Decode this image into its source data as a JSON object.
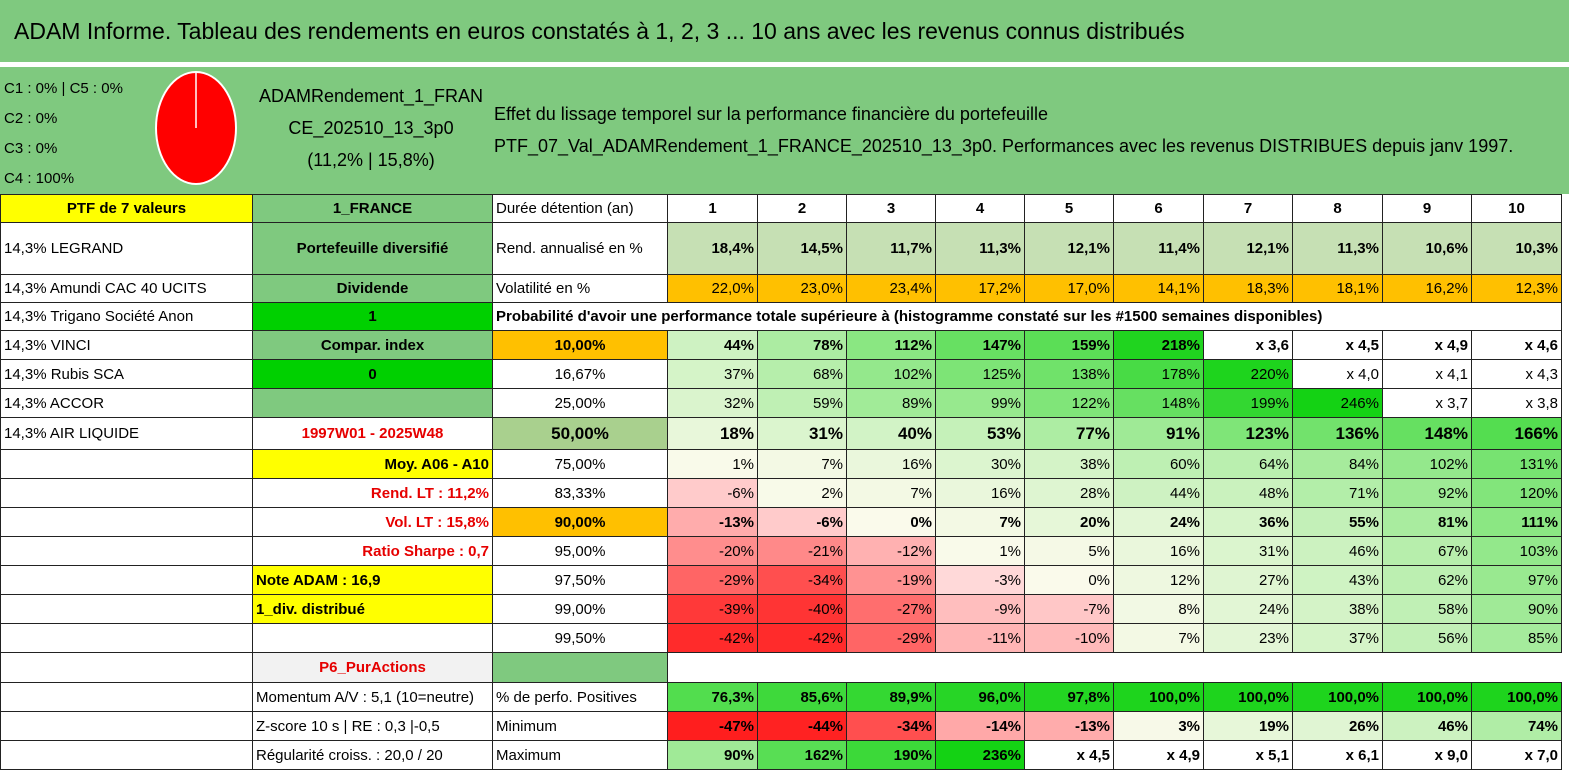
{
  "title": "ADAM Informe. Tableau des rendements en euros constatés à 1, 2, 3 ... 10 ans avec les revenus connus distribués",
  "legend": [
    "C1 : 0% | C5 : 0%",
    "C2 : 0%",
    "C3 : 0%",
    "C4 : 100%"
  ],
  "pie": {
    "C4": 100,
    "color": "#ff0000"
  },
  "portfolio_name": [
    "ADAMRendement_1_FRAN",
    "CE_202510_13_3p0",
    "(11,2% | 15,8%)"
  ],
  "effect": [
    "Effet du lissage temporel sur la performance financière du portefeuille",
    "PTF_07_Val_ADAMRendement_1_FRANCE_202510_13_3p0. Performances avec les revenus DISTRIBUES depuis janv 1997."
  ],
  "holdings_header": "PTF de 7 valeurs",
  "market": "1_FRANCE",
  "duration_label": "Durée détention (an)",
  "years": [
    "1",
    "2",
    "3",
    "4",
    "5",
    "6",
    "7",
    "8",
    "9",
    "10"
  ],
  "holdings": [
    "14,3% LEGRAND",
    "14,3% Amundi CAC 40 UCITS",
    "14,3% Trigano Société Anon",
    "14,3% VINCI",
    "14,3% Rubis SCA",
    "14,3% ACCOR",
    "14,3% AIR LIQUIDE"
  ],
  "side": {
    "diversified": "Portefeuille diversifié",
    "dividend": "Dividende",
    "dividend_val": "1",
    "compar": "Compar. index",
    "compar_val": "0",
    "period": "1997W01 - 2025W48",
    "moy": "Moy. A06 - A10",
    "rend_lt": "Rend. LT : 11,2%",
    "vol_lt": "Vol. LT : 15,8%",
    "sharpe": "Ratio Sharpe : 0,7",
    "note": "Note ADAM : 16,9",
    "div": "1_div. distribué",
    "p6": "P6_PurActions",
    "momentum": "Momentum A/V : 5,1 (10=neutre)",
    "zscore": "Z-score 10 s | RE : 0,3 |-0,5",
    "regul": "Régularité croiss. : 20,0 / 20"
  },
  "rend_label": "Rend. annualisé en %",
  "rend": [
    "18,4%",
    "14,5%",
    "11,7%",
    "11,3%",
    "12,1%",
    "11,4%",
    "12,1%",
    "11,3%",
    "10,6%",
    "10,3%"
  ],
  "vol_label": "Volatilité en %",
  "vol": [
    "22,0%",
    "23,0%",
    "23,4%",
    "17,2%",
    "17,0%",
    "14,1%",
    "18,3%",
    "18,1%",
    "16,2%",
    "12,3%"
  ],
  "proba_label": "Probabilité d'avoir une performance totale supérieure à (histogramme constaté sur les #1500 semaines disponibles)",
  "pct_rows": [
    {
      "p": "10,00%",
      "v": [
        "44%",
        "78%",
        "112%",
        "147%",
        "159%",
        "218%",
        "x 3,6",
        "x 4,5",
        "x 4,9",
        "x 4,6"
      ]
    },
    {
      "p": "16,67%",
      "v": [
        "37%",
        "68%",
        "102%",
        "125%",
        "138%",
        "178%",
        "220%",
        "x 4,0",
        "x 4,1",
        "x 4,3"
      ]
    },
    {
      "p": "25,00%",
      "v": [
        "32%",
        "59%",
        "89%",
        "99%",
        "122%",
        "148%",
        "199%",
        "246%",
        "x 3,7",
        "x 3,8"
      ]
    },
    {
      "p": "50,00%",
      "v": [
        "18%",
        "31%",
        "40%",
        "53%",
        "77%",
        "91%",
        "123%",
        "136%",
        "148%",
        "166%"
      ]
    },
    {
      "p": "75,00%",
      "v": [
        "1%",
        "7%",
        "16%",
        "30%",
        "38%",
        "60%",
        "64%",
        "84%",
        "102%",
        "131%"
      ]
    },
    {
      "p": "83,33%",
      "v": [
        "-6%",
        "2%",
        "7%",
        "16%",
        "28%",
        "44%",
        "48%",
        "71%",
        "92%",
        "120%"
      ]
    },
    {
      "p": "90,00%",
      "v": [
        "-13%",
        "-6%",
        "0%",
        "7%",
        "20%",
        "24%",
        "36%",
        "55%",
        "81%",
        "111%"
      ]
    },
    {
      "p": "95,00%",
      "v": [
        "-20%",
        "-21%",
        "-12%",
        "1%",
        "5%",
        "16%",
        "31%",
        "46%",
        "67%",
        "103%"
      ]
    },
    {
      "p": "97,50%",
      "v": [
        "-29%",
        "-34%",
        "-19%",
        "-3%",
        "0%",
        "12%",
        "27%",
        "43%",
        "62%",
        "97%"
      ]
    },
    {
      "p": "99,00%",
      "v": [
        "-39%",
        "-40%",
        "-27%",
        "-9%",
        "-7%",
        "8%",
        "24%",
        "38%",
        "58%",
        "90%"
      ]
    },
    {
      "p": "99,50%",
      "v": [
        "-42%",
        "-42%",
        "-29%",
        "-11%",
        "-10%",
        "7%",
        "23%",
        "37%",
        "56%",
        "85%"
      ]
    }
  ],
  "pos_label": "% de perfo. Positives",
  "pos": [
    "76,3%",
    "85,6%",
    "89,9%",
    "96,0%",
    "97,8%",
    "100,0%",
    "100,0%",
    "100,0%",
    "100,0%",
    "100,0%"
  ],
  "min_label": "Minimum",
  "min": [
    "-47%",
    "-44%",
    "-34%",
    "-14%",
    "-13%",
    "3%",
    "19%",
    "26%",
    "46%",
    "74%"
  ],
  "max_label": "Maximum",
  "max": [
    "90%",
    "162%",
    "190%",
    "236%",
    "x 4,5",
    "x 4,9",
    "x 5,1",
    "x 6,1",
    "x 9,0",
    "x 7,0"
  ]
}
